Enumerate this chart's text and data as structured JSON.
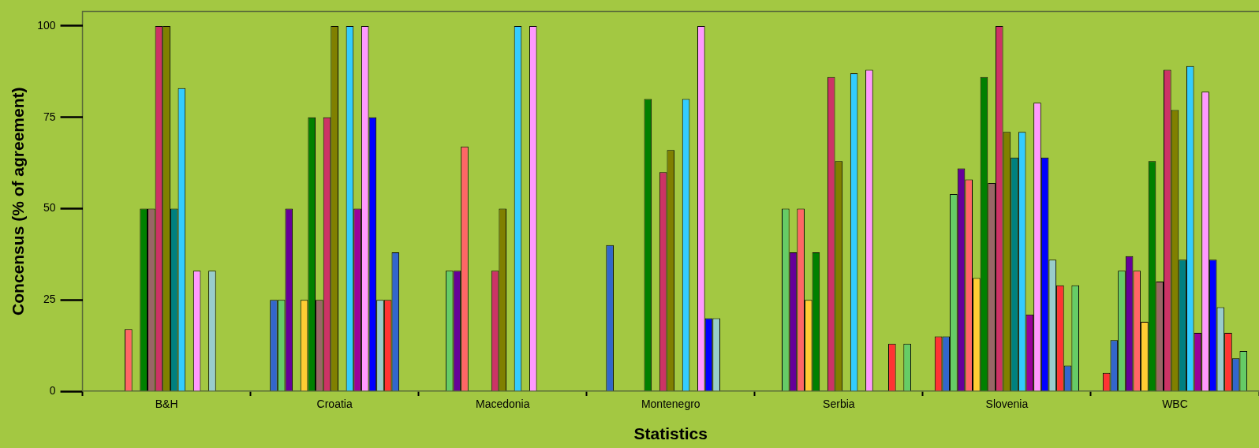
{
  "chart_data": {
    "type": "bar",
    "xlabel": "Statistics",
    "ylabel": "Concensus (% of agreement)",
    "categories": [
      "B&H",
      "Croatia",
      "Macedonia",
      "Montenegro",
      "Serbia",
      "Slovenia",
      "WBC"
    ],
    "ylim": [
      0,
      104
    ],
    "yticks": [
      0,
      25,
      50,
      75,
      100
    ],
    "grid": false,
    "legend": false,
    "series": [
      {
        "color": "#ff3333",
        "values": [
          null,
          null,
          null,
          null,
          null,
          15,
          5
        ]
      },
      {
        "color": "#3366cc",
        "values": [
          null,
          25,
          null,
          40,
          null,
          15,
          14
        ]
      },
      {
        "color": "#66cc66",
        "values": [
          null,
          25,
          33,
          null,
          50,
          54,
          33
        ]
      },
      {
        "color": "#660099",
        "values": [
          null,
          50,
          33,
          null,
          38,
          61,
          37
        ]
      },
      {
        "color": "#ff6666",
        "values": [
          17,
          null,
          67,
          null,
          50,
          58,
          33
        ]
      },
      {
        "color": "#ffcc33",
        "values": [
          null,
          25,
          null,
          null,
          25,
          31,
          19
        ]
      },
      {
        "color": "#008000",
        "values": [
          50,
          75,
          null,
          80,
          38,
          86,
          63
        ]
      },
      {
        "color": "#996666",
        "values": [
          50,
          25,
          null,
          null,
          null,
          57,
          30
        ]
      },
      {
        "color": "#cc3366",
        "values": [
          100,
          75,
          33,
          60,
          86,
          100,
          88
        ]
      },
      {
        "color": "#808000",
        "values": [
          100,
          100,
          50,
          66,
          63,
          71,
          77
        ]
      },
      {
        "color": "#008080",
        "values": [
          50,
          null,
          null,
          null,
          null,
          64,
          36
        ]
      },
      {
        "color": "#33ccff",
        "values": [
          83,
          100,
          100,
          80,
          87,
          71,
          89
        ]
      },
      {
        "color": "#990099",
        "values": [
          null,
          50,
          null,
          null,
          null,
          21,
          16
        ]
      },
      {
        "color": "#ff99ff",
        "values": [
          33,
          100,
          100,
          100,
          88,
          79,
          82
        ]
      },
      {
        "color": "#0000ff",
        "values": [
          null,
          75,
          null,
          20,
          null,
          64,
          36
        ]
      },
      {
        "color": "#99cccc",
        "values": [
          33,
          25,
          null,
          20,
          null,
          36,
          23
        ]
      },
      {
        "color": "#ff3333",
        "values": [
          null,
          25,
          null,
          null,
          13,
          29,
          16
        ]
      },
      {
        "color": "#3366cc",
        "values": [
          null,
          38,
          null,
          null,
          null,
          7,
          9
        ]
      },
      {
        "color": "#66cc66",
        "values": [
          null,
          null,
          null,
          null,
          13,
          29,
          11
        ]
      }
    ]
  }
}
